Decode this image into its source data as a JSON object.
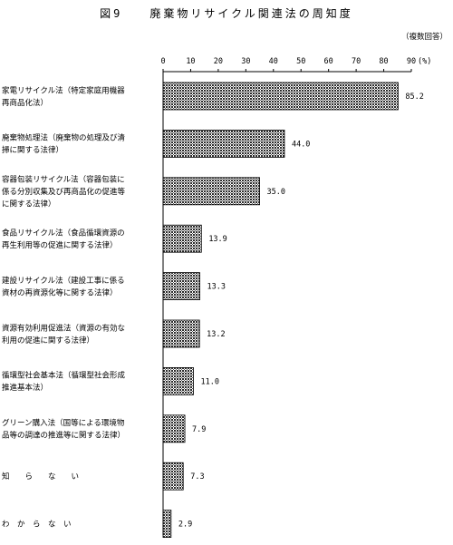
{
  "chart_data": {
    "type": "bar",
    "orientation": "horizontal",
    "title": "図9　　廃棄物リサイクル関連法の周知度",
    "subtitle": "（複数回答）",
    "unit_label": "(%)",
    "xlim": [
      0,
      90
    ],
    "ticks": [
      "0",
      "10",
      "20",
      "30",
      "40",
      "50",
      "60",
      "70",
      "80",
      "90"
    ],
    "categories": [
      [
        "家電リサイクル法（特定家庭用機器",
        "再商品化法）"
      ],
      [
        "廃棄物処理法（廃棄物の処理及び清",
        "掃に関する法律）"
      ],
      [
        "容器包装リサイクル法（容器包装に",
        "係る分別収集及び再商品化の促進等",
        "に関する法律）"
      ],
      [
        "食品リサイクル法（食品循環資源の",
        "再生利用等の促進に関する法律）"
      ],
      [
        "建設リサイクル法（建設工事に係る",
        "資材の再資源化等に関する法律）"
      ],
      [
        "資源有効利用促進法（資源の有効な",
        "利用の促進に関する法律）"
      ],
      [
        "循環型社会基本法（循環型社会形成",
        "推進基本法）"
      ],
      [
        "グリーン購入法（国等による環境物",
        "品等の調達の推進等に関する法律）"
      ],
      [
        "知　　ら　　な　　い"
      ],
      [
        "わ　か　ら　な　い"
      ]
    ],
    "values": [
      85.2,
      44.0,
      35.0,
      13.9,
      13.3,
      13.2,
      11.0,
      7.9,
      7.3,
      2.9
    ],
    "value_labels": [
      "85.2",
      "44.0",
      "35.0",
      "13.9",
      "13.3",
      "13.2",
      "11.0",
      "7.9",
      "7.3",
      "2.9"
    ],
    "grid": false,
    "legend": "none",
    "bar_fill": "#3a3a3a",
    "bar_pattern": "crosshatch"
  }
}
